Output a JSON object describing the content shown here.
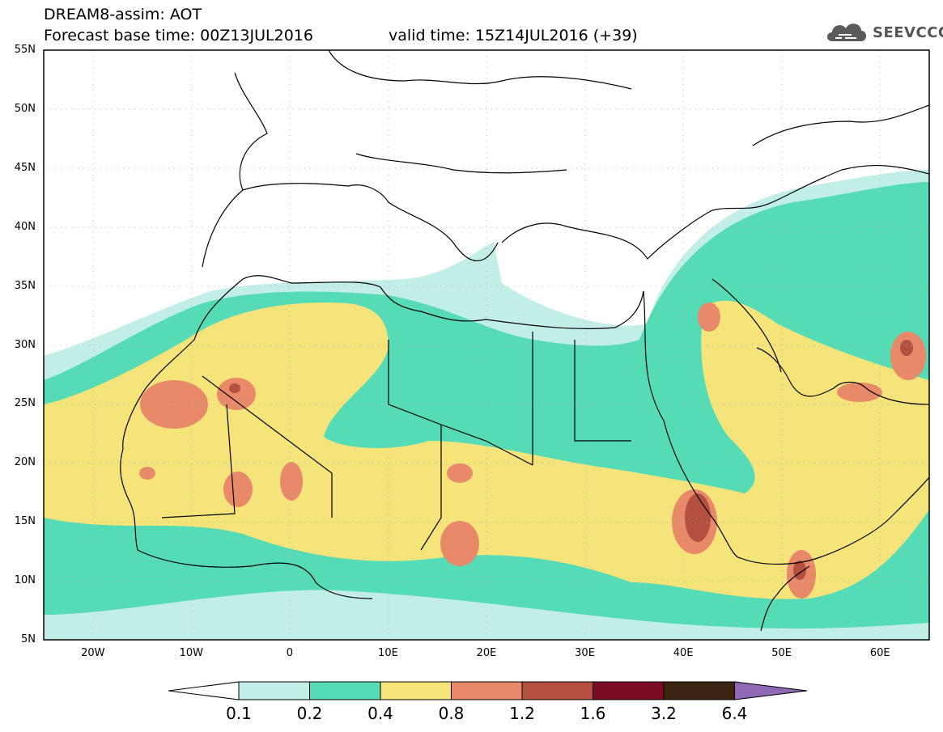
{
  "header": {
    "line1": "DREAM8-assim: AOT",
    "line2": "Forecast base time: 00Z13JUL2016",
    "valid_time": "valid time: 15Z14JUL2016 (+39)"
  },
  "logo": {
    "text": "SEEVCCC",
    "icon": "cloud-icon"
  },
  "map": {
    "variable": "AOT",
    "lon_range": [
      -25,
      65
    ],
    "lat_range": [
      5,
      55
    ],
    "lat_ticks": [
      {
        "value": 55,
        "label": "55N"
      },
      {
        "value": 50,
        "label": "50N"
      },
      {
        "value": 45,
        "label": "45N"
      },
      {
        "value": 40,
        "label": "40N"
      },
      {
        "value": 35,
        "label": "35N"
      },
      {
        "value": 30,
        "label": "30N"
      },
      {
        "value": 25,
        "label": "25N"
      },
      {
        "value": 20,
        "label": "20N"
      },
      {
        "value": 15,
        "label": "15N"
      },
      {
        "value": 10,
        "label": "10N"
      },
      {
        "value": 5,
        "label": "5N"
      }
    ],
    "lon_ticks": [
      {
        "value": -20,
        "label": "20W"
      },
      {
        "value": -10,
        "label": "10W"
      },
      {
        "value": 0,
        "label": "0"
      },
      {
        "value": 10,
        "label": "10E"
      },
      {
        "value": 20,
        "label": "20E"
      },
      {
        "value": 30,
        "label": "30E"
      },
      {
        "value": 40,
        "label": "40E"
      },
      {
        "value": 50,
        "label": "50E"
      },
      {
        "value": 60,
        "label": "60E"
      }
    ]
  },
  "colorbar": {
    "labels": [
      "0.1",
      "0.2",
      "0.4",
      "0.8",
      "1.2",
      "1.6",
      "3.2",
      "6.4"
    ],
    "colors": [
      "#ffffff",
      "#c2eee8",
      "#55dcb6",
      "#f5e47a",
      "#e8896a",
      "#b3503f",
      "#7c0a22",
      "#3b2412",
      "#8e6ab4"
    ]
  }
}
